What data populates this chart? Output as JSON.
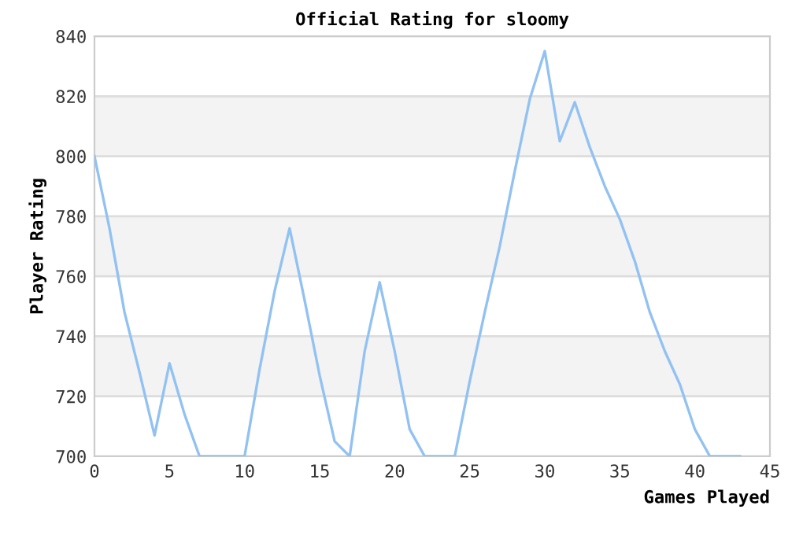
{
  "chart_data": {
    "type": "line",
    "title": "Official Rating for sloomy",
    "xlabel": "Games Played",
    "ylabel": "Player Rating",
    "x": [
      0,
      1,
      2,
      3,
      4,
      5,
      6,
      7,
      8,
      9,
      10,
      11,
      12,
      13,
      14,
      15,
      16,
      17,
      18,
      19,
      20,
      21,
      22,
      23,
      24,
      25,
      26,
      27,
      28,
      29,
      30,
      31,
      32,
      33,
      34,
      35,
      36,
      37,
      38,
      39,
      40,
      41,
      42,
      43
    ],
    "series": [
      {
        "color": "#92c2f2",
        "values": [
          800,
          776,
          748,
          728,
          707,
          731,
          714,
          700,
          700,
          700,
          700,
          729,
          755,
          776,
          752,
          727,
          705,
          700,
          735,
          758,
          735,
          709,
          700,
          700,
          700,
          725,
          748,
          770,
          795,
          819,
          835,
          805,
          818,
          803,
          790,
          779,
          765,
          748,
          735,
          724,
          709,
          700,
          700,
          700
        ]
      }
    ],
    "xlim": [
      0,
      45
    ],
    "xticks": [
      0,
      5,
      10,
      15,
      20,
      25,
      30,
      35,
      40,
      45
    ],
    "ylim": [
      700,
      840
    ],
    "yticks": [
      700,
      720,
      740,
      760,
      780,
      800,
      820,
      840
    ],
    "grid": "y",
    "marker": "none",
    "line_style": "solid",
    "bands": [
      {
        "axis": "y",
        "from": 720,
        "to": 740,
        "color": "#f3f3f3"
      },
      {
        "axis": "y",
        "from": 760,
        "to": 780,
        "color": "#f3f3f3"
      },
      {
        "axis": "y",
        "from": 800,
        "to": 820,
        "color": "#f3f3f3"
      }
    ]
  }
}
